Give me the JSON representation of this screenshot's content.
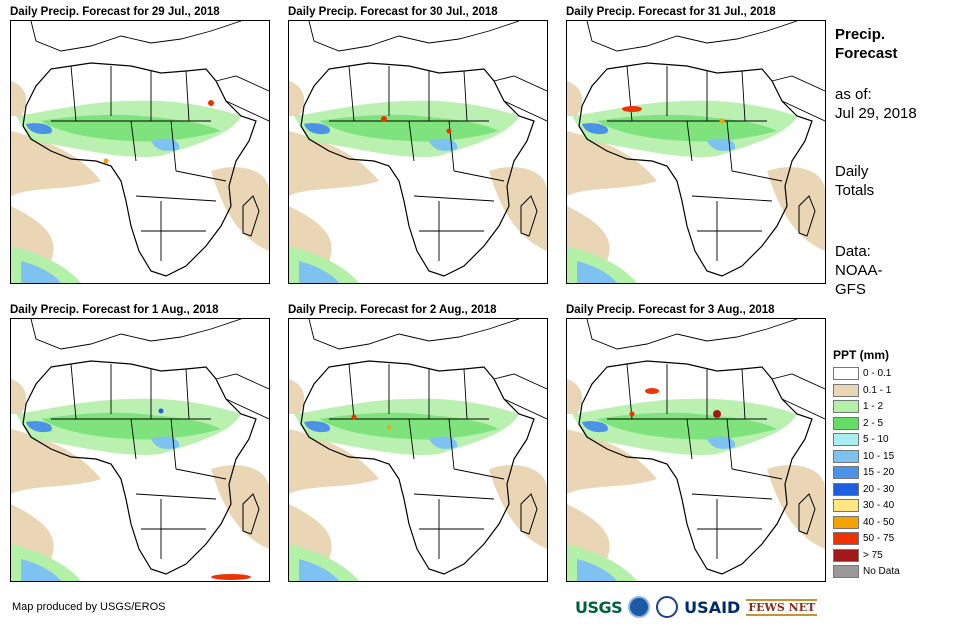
{
  "panels": [
    {
      "title": "Daily Precip. Forecast for 29 Jul., 2018"
    },
    {
      "title": "Daily Precip. Forecast for 30 Jul., 2018"
    },
    {
      "title": "Daily Precip. Forecast for 31 Jul., 2018"
    },
    {
      "title": "Daily Precip. Forecast for 1 Aug., 2018"
    },
    {
      "title": "Daily Precip. Forecast for 2 Aug., 2018"
    },
    {
      "title": "Daily Precip. Forecast for 3 Aug., 2018"
    }
  ],
  "sidebar": {
    "title_line1": "Precip.",
    "title_line2": "Forecast",
    "asof_line1": "as of:",
    "asof_line2": "Jul 29, 2018",
    "totals_line1": "Daily",
    "totals_line2": "Totals",
    "source_line1": "Data:",
    "source_line2": "NOAA-",
    "source_line3": "GFS"
  },
  "legend": {
    "title": "PPT (mm)",
    "items": [
      {
        "label": "0 - 0.1",
        "color": "#ffffff"
      },
      {
        "label": "0.1 - 1",
        "color": "#ead6b4"
      },
      {
        "label": "1 - 2",
        "color": "#b3f0a8"
      },
      {
        "label": "2 - 5",
        "color": "#66dd66"
      },
      {
        "label": "5 - 10",
        "color": "#a8eef0"
      },
      {
        "label": "10 - 15",
        "color": "#7ec2f2"
      },
      {
        "label": "15 - 20",
        "color": "#4c93e8"
      },
      {
        "label": "20 - 30",
        "color": "#1f5fdd"
      },
      {
        "label": "30 - 40",
        "color": "#ffe680"
      },
      {
        "label": "40 - 50",
        "color": "#f5a300"
      },
      {
        "label": "50 - 75",
        "color": "#ee3300"
      },
      {
        "label": "> 75",
        "color": "#a31818"
      },
      {
        "label": "No Data",
        "color": "#999999"
      }
    ]
  },
  "footer": {
    "credit": "Map produced by USGS/EROS",
    "logos": [
      "USGS",
      "NOAA",
      "USAID",
      "FEWS NET"
    ]
  }
}
